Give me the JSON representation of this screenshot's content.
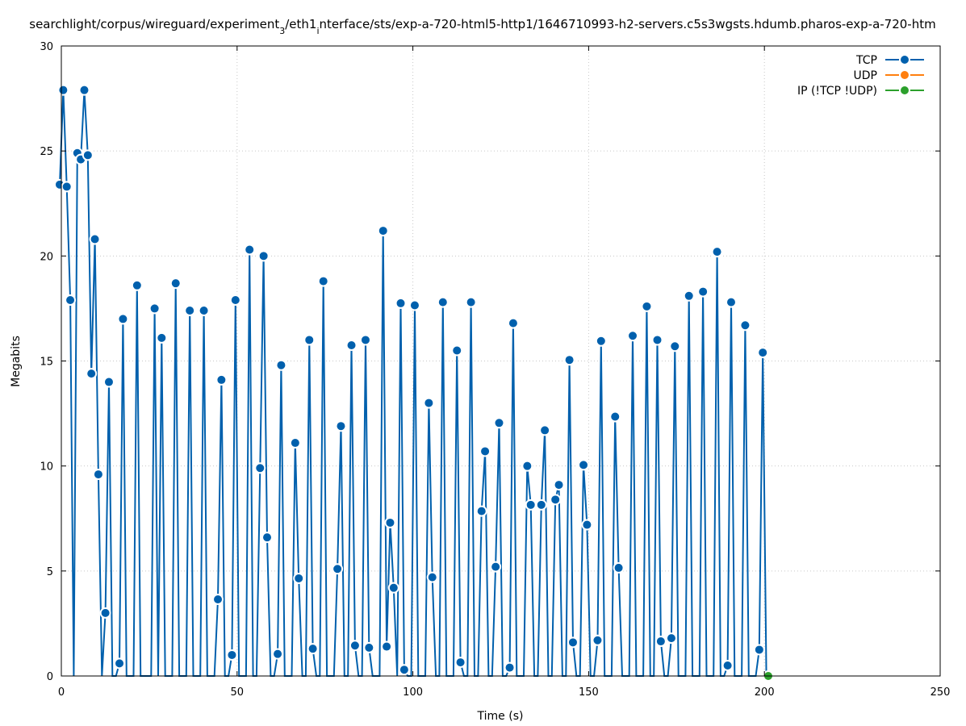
{
  "chart_data": {
    "type": "line",
    "title": "searchlight/corpus/wireguard/experiment_3/eth1_interface/sts/exp-a-720-html5-http1/1646710993-h2-servers.c5s3wgsts.hdumb.pharos-exp-a-720-htm",
    "xlabel": "Time (s)",
    "ylabel": "Megabits",
    "xlim": [
      0,
      250
    ],
    "ylim": [
      0,
      30
    ],
    "xticks": [
      "0",
      "50",
      "100",
      "150",
      "200",
      "250"
    ],
    "yticks": [
      "0",
      "5",
      "10",
      "15",
      "20",
      "25",
      "30"
    ],
    "grid": true,
    "legend_position": "top-right",
    "series": [
      {
        "name": "TCP",
        "color": "#0060ad",
        "x_start": -0.46,
        "x_step": 1,
        "values": [
          23.4,
          27.9,
          23.3,
          17.9,
          0,
          24.9,
          24.6,
          27.9,
          24.8,
          14.4,
          20.8,
          9.6,
          0,
          3.0,
          14.0,
          0,
          0,
          0.6,
          17.0,
          0,
          0,
          0,
          18.6,
          0,
          0,
          0,
          0,
          17.5,
          0,
          16.1,
          0,
          0,
          0,
          18.7,
          0,
          0,
          0,
          17.4,
          0,
          0,
          0,
          17.4,
          0,
          0,
          0,
          3.65,
          14.1,
          0,
          0,
          1.0,
          17.9,
          0,
          0,
          0,
          20.3,
          0,
          0,
          9.9,
          20.0,
          6.6,
          0,
          0,
          1.05,
          14.8,
          0,
          0,
          0,
          11.1,
          4.65,
          0,
          0,
          16.0,
          1.3,
          0,
          0,
          18.8,
          0,
          0,
          0,
          5.1,
          11.9,
          0,
          0,
          15.75,
          1.45,
          0,
          0,
          16.0,
          1.35,
          0,
          0,
          0,
          21.2,
          1.4,
          7.3,
          4.2,
          0,
          17.75,
          0.3,
          0,
          0,
          17.65,
          0,
          0,
          0,
          13.0,
          4.7,
          0,
          0,
          17.8,
          0,
          0,
          0,
          15.5,
          0.65,
          0,
          0,
          17.8,
          0,
          0,
          7.85,
          10.7,
          0,
          0,
          5.2,
          12.05,
          0,
          0,
          0.4,
          16.8,
          0,
          0,
          0,
          10.0,
          8.15,
          0,
          0,
          8.15,
          11.7,
          0,
          0,
          8.4,
          9.1,
          0,
          0,
          15.05,
          1.6,
          0,
          0,
          10.05,
          7.2,
          0,
          0,
          1.7,
          15.95,
          0,
          0,
          0,
          12.35,
          5.15,
          0,
          0,
          0,
          16.2,
          0,
          0,
          0,
          17.6,
          0,
          0,
          16.0,
          1.65,
          0,
          0,
          1.8,
          15.7,
          0,
          0,
          0,
          18.1,
          0,
          0,
          0,
          18.3,
          0,
          0,
          0,
          20.2,
          0,
          0,
          0.5,
          17.8,
          0,
          0,
          0,
          16.7,
          0,
          0,
          0,
          1.25,
          15.4,
          0
        ]
      },
      {
        "name": "UDP",
        "color": "#ff7f0e",
        "x": [],
        "values": []
      },
      {
        "name": "IP (!TCP  !UDP)",
        "color": "#2ca02c",
        "x": [
          201.1
        ],
        "values": [
          0
        ]
      }
    ]
  }
}
